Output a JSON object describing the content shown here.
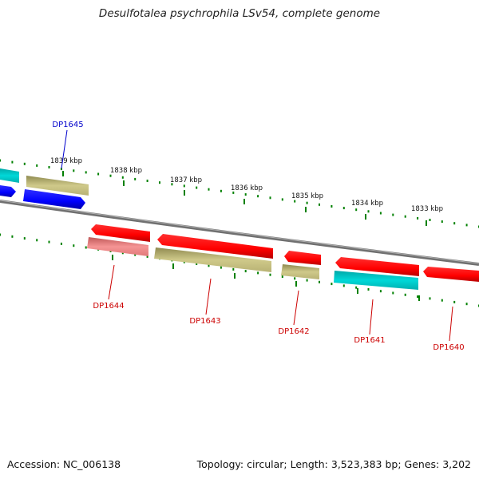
{
  "title": "Desulfotalea psychrophila LSv54, complete genome",
  "footer": {
    "accession": "Accession: NC_006138",
    "summary": "Topology: circular; Length: 3,523,383 bp; Genes: 3,202"
  },
  "ruler": {
    "ticks": [
      "1839 kbp",
      "1838 kbp",
      "1837 kbp",
      "1836 kbp",
      "1835 kbp",
      "1834 kbp",
      "1833 kbp"
    ]
  },
  "genes": [
    {
      "id": "DP1645",
      "color": "#0000cc"
    },
    {
      "id": "DP1644",
      "color": "#cc0000"
    },
    {
      "id": "DP1643",
      "color": "#cc0000"
    },
    {
      "id": "DP1642",
      "color": "#cc0000"
    },
    {
      "id": "DP1641",
      "color": "#cc0000"
    },
    {
      "id": "DP1640",
      "color": "#cc0000"
    }
  ],
  "colors": {
    "forward_gene_red": "#ff0000",
    "forward_gene_blue": "#0000ff",
    "cog_cyan": "#00d0d0",
    "cog_olive": "#c8c27a",
    "cog_pink": "#f08080",
    "backbone": "#808080",
    "tick": "#008000"
  }
}
